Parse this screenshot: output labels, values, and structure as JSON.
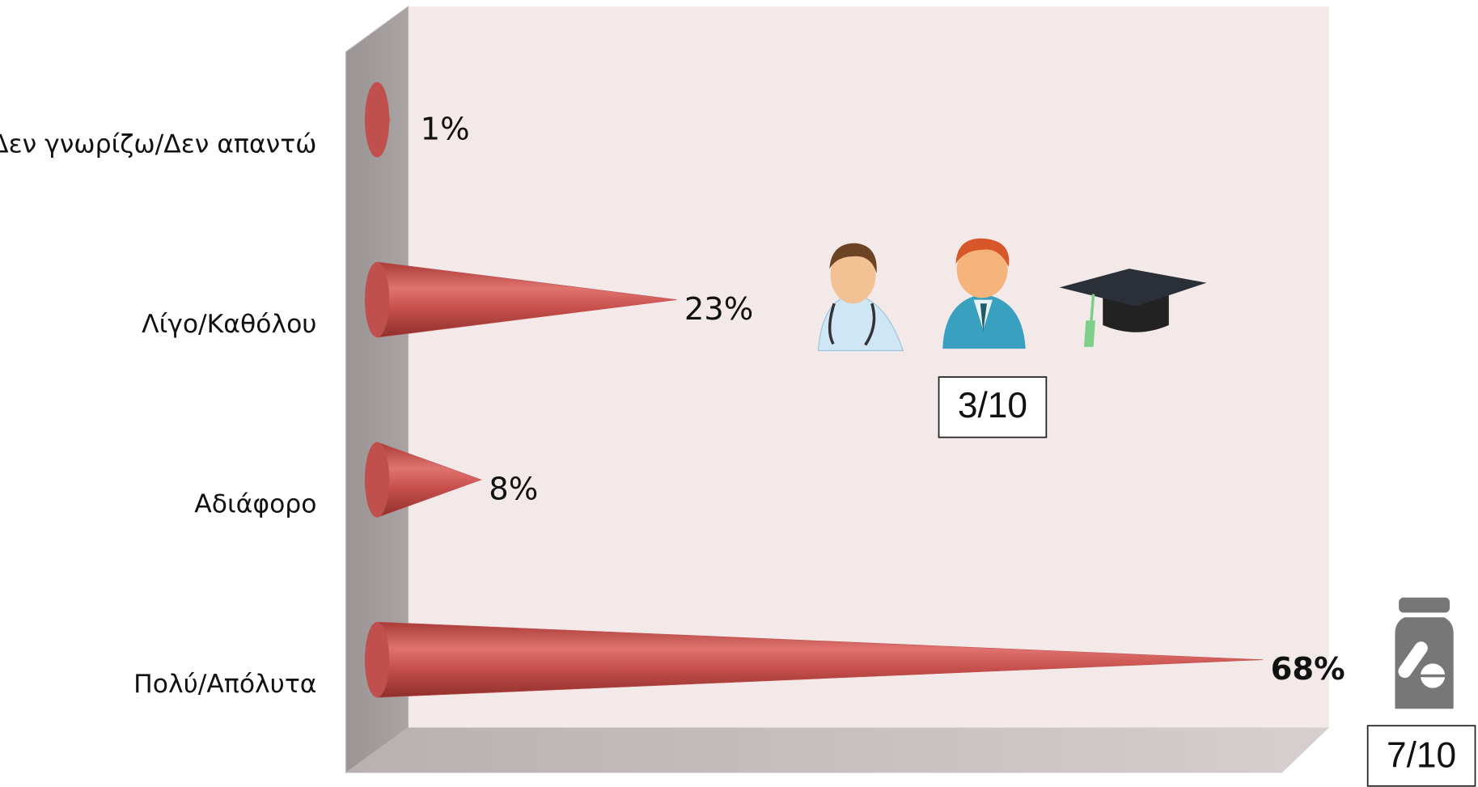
{
  "chart_data": {
    "type": "bar",
    "categories": [
      "Δεν γνωρίζω/Δεν απαντώ",
      "Λίγο/Καθόλου",
      "Αδιάφορο",
      "Πολύ/Απόλυτα"
    ],
    "values": [
      1,
      23,
      8,
      68
    ],
    "value_labels": [
      "1%",
      "23%",
      "8%",
      "68%"
    ],
    "color": "#c0504d",
    "annotations": [
      "3/10",
      "7/10"
    ]
  }
}
